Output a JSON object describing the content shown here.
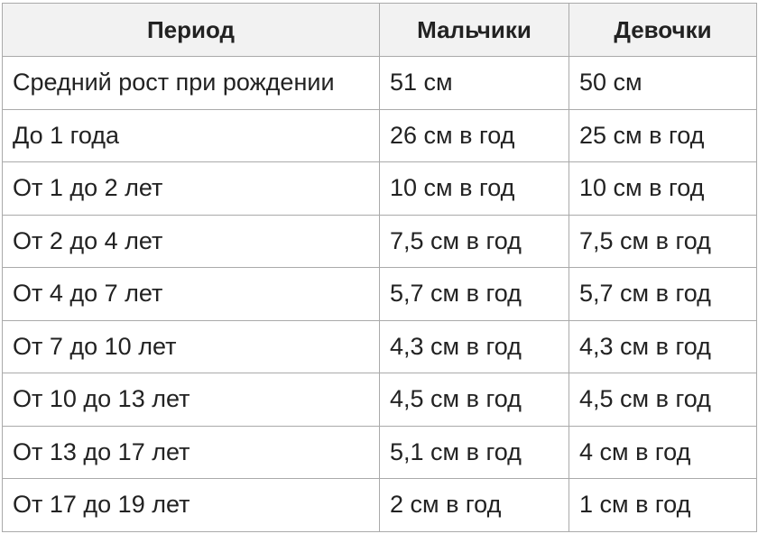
{
  "table": {
    "headers": [
      "Период",
      "Мальчики",
      "Девочки"
    ],
    "rows": [
      [
        "Средний рост при рождении",
        "51 см",
        "50 см"
      ],
      [
        "До 1 года",
        "26 см в год",
        "25 см в год"
      ],
      [
        "От 1 до 2 лет",
        "10 см в год",
        "10 см в год"
      ],
      [
        "От 2 до 4 лет",
        "7,5 см в год",
        "7,5 см в год"
      ],
      [
        "От 4 до 7 лет",
        "5,7 см в год",
        "5,7 см в год"
      ],
      [
        "От 7 до 10 лет",
        "4,3 см в год",
        "4,3 см в год"
      ],
      [
        "От 10 до 13 лет",
        "4,5 см в год",
        "4,5 см в год"
      ],
      [
        "От 13 до 17 лет",
        "5,1 см в год",
        "4 см в год"
      ],
      [
        "От 17 до 19 лет",
        "2 см в год",
        "1 см в год"
      ]
    ]
  }
}
